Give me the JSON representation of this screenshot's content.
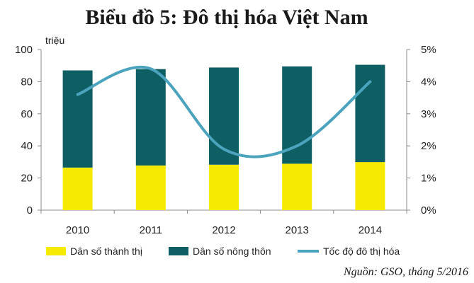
{
  "chart_data": {
    "type": "bar",
    "title": "Biểu đồ 5: Đô thị hóa Việt Nam",
    "categories": [
      "2010",
      "2011",
      "2012",
      "2013",
      "2014"
    ],
    "y_unit": "triệu",
    "ylim": [
      0,
      100
    ],
    "y_ticks": [
      "0",
      "20",
      "40",
      "60",
      "80",
      "100"
    ],
    "y2lim": [
      0,
      5
    ],
    "y2_ticks": [
      "0%",
      "1%",
      "2%",
      "3%",
      "4%",
      "5%"
    ],
    "stacked": true,
    "series": [
      {
        "name": "Dân số thành thị",
        "type": "bar",
        "axis": "left",
        "color": "#f5ea00",
        "values": [
          26.5,
          27.8,
          28.3,
          28.9,
          29.9
        ]
      },
      {
        "name": "Dân số nông thôn",
        "type": "bar",
        "axis": "left",
        "color": "#0e5f64",
        "values": [
          60.5,
          60.0,
          60.5,
          60.6,
          60.6
        ]
      },
      {
        "name": "Tốc độ đô thị hóa",
        "type": "line",
        "axis": "right",
        "color": "#4ba3bd",
        "values": [
          3.6,
          4.4,
          1.9,
          2.0,
          4.0
        ]
      }
    ],
    "grid": false,
    "legend": "bottom",
    "source": "Nguồn: GSO, tháng 5/2016"
  }
}
